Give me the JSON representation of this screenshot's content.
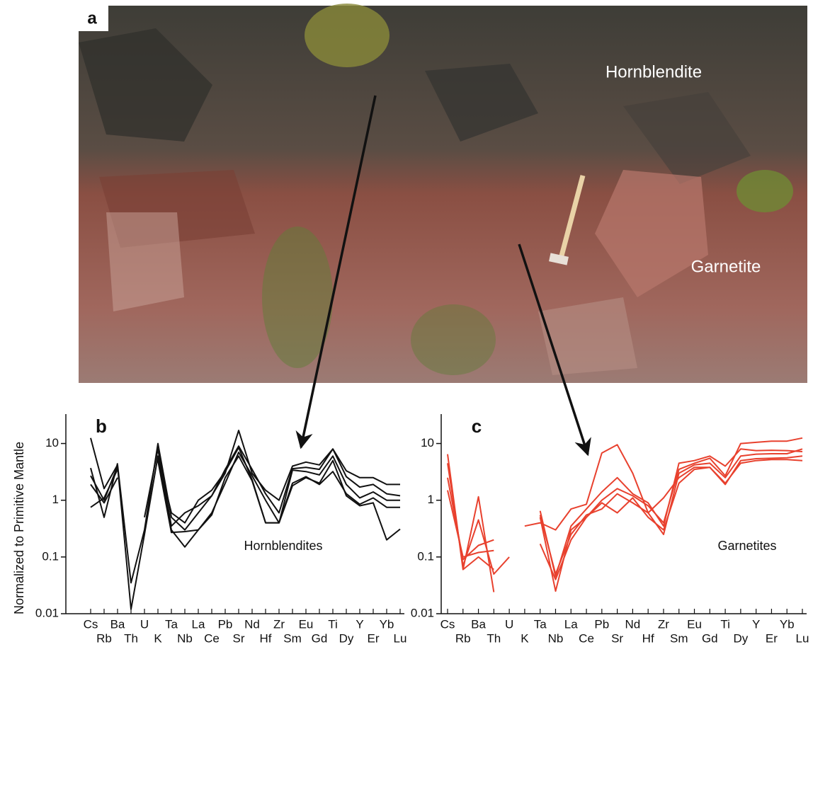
{
  "photo": {
    "panel_label": "a",
    "labels": [
      "Hornblendite",
      "Garnetite"
    ]
  },
  "chart_data": [
    {
      "type": "line",
      "panel_label": "b",
      "title": "Hornblendites",
      "y_label": "Normalized to Primitive Mantle",
      "categories": [
        "Cs",
        "Rb",
        "Ba",
        "Th",
        "U",
        "K",
        "Ta",
        "Nb",
        "La",
        "Ce",
        "Pb",
        "Sr",
        "Nd",
        "Hf",
        "Zr",
        "Sm",
        "Eu",
        "Gd",
        "Ti",
        "Dy",
        "Y",
        "Er",
        "Yb",
        "Lu"
      ],
      "ylim": [
        0.01,
        33
      ],
      "yticks": [
        0.01,
        0.1,
        1,
        10
      ],
      "log_scale": true,
      "series": [
        {
          "color": "#111111",
          "values": [
            12.5,
            1.6,
            4.2,
            0.035,
            0.3,
            10,
            0.5,
            0.3,
            0.6,
            1.2,
            3,
            17,
            3,
            1.5,
            1,
            4,
            4.7,
            4.2,
            8,
            3.3,
            2.5,
            2.5,
            1.9,
            1.9
          ]
        },
        {
          "color": "#111111",
          "values": [
            3.7,
            0.5,
            4.5,
            null,
            0.5,
            8,
            0.35,
            0.6,
            0.8,
            1.2,
            3.5,
            9,
            3.5,
            1.3,
            0.6,
            3.6,
            3.8,
            3.5,
            8,
            2.6,
            1.7,
            1.9,
            1.3,
            1.2
          ]
        },
        {
          "color": "#111111",
          "values": [
            2.7,
            1,
            4,
            0.012,
            0.25,
            6,
            0.3,
            0.15,
            0.3,
            0.6,
            2,
            7,
            2.7,
            1,
            0.4,
            3.4,
            3.2,
            2.8,
            6,
            1.9,
            1.1,
            1.4,
            1,
            1
          ]
        },
        {
          "color": "#111111",
          "values": [
            1.9,
            0.9,
            2.5,
            null,
            null,
            5,
            0.27,
            0.28,
            0.3,
            0.55,
            2.5,
            6,
            2.2,
            0.4,
            0.4,
            2,
            2.6,
            1.9,
            3.2,
            1.3,
            0.85,
            1.1,
            0.75,
            0.75
          ]
        },
        {
          "color": "#111111",
          "values": [
            0.75,
            1.1,
            3.5,
            null,
            null,
            5.5,
            0.6,
            0.4,
            1,
            1.5,
            3.2,
            8.5,
            2.3,
            0.4,
            0.4,
            1.8,
            2.5,
            2,
            5,
            1.2,
            0.8,
            0.9,
            0.2,
            0.31
          ]
        }
      ]
    },
    {
      "type": "line",
      "panel_label": "c",
      "title": "Garnetites",
      "categories": [
        "Cs",
        "Rb",
        "Ba",
        "Th",
        "U",
        "K",
        "Ta",
        "Nb",
        "La",
        "Ce",
        "Pb",
        "Sr",
        "Nd",
        "Hf",
        "Zr",
        "Sm",
        "Eu",
        "Gd",
        "Ti",
        "Dy",
        "Y",
        "Er",
        "Yb",
        "Lu"
      ],
      "ylim": [
        0.01,
        33
      ],
      "yticks": [
        0.01,
        0.1,
        1,
        10
      ],
      "log_scale": true,
      "series": [
        {
          "color": "#e8412e",
          "values": [
            6.5,
            0.06,
            1.15,
            0.024,
            null,
            null,
            0.5,
            0.025,
            0.3,
            0.5,
            1,
            1.6,
            1.2,
            0.8,
            0.4,
            3.5,
            4.5,
            5.5,
            2.7,
            10,
            10.5,
            11,
            11,
            12.5
          ]
        },
        {
          "color": "#e8412e",
          "values": [
            4.5,
            0.07,
            0.45,
            0.05,
            0.1,
            null,
            0.55,
            0.05,
            0.25,
            0.55,
            0.7,
            1.3,
            0.9,
            0.6,
            0.25,
            3,
            4.2,
            4.5,
            2.5,
            6,
            6.5,
            6.6,
            6.6,
            8
          ]
        },
        {
          "color": "#e8412e",
          "values": [
            2.5,
            0.09,
            0.16,
            0.2,
            null,
            null,
            0.65,
            0.045,
            0.35,
            0.7,
            1.4,
            2.5,
            1.3,
            0.9,
            0.35,
            4.5,
            5,
            6,
            4,
            8,
            7.5,
            7.6,
            7.5,
            7.2
          ]
        },
        {
          "color": "#e8412e",
          "values": [
            1.5,
            0.1,
            0.12,
            0.13,
            null,
            0.35,
            0.4,
            0.3,
            0.7,
            0.85,
            6.8,
            9.5,
            3,
            0.6,
            1.1,
            2.5,
            3.8,
            3.8,
            1.9,
            5,
            5.4,
            5.5,
            5.6,
            6
          ]
        },
        {
          "color": "#e8412e",
          "values": [
            null,
            0.06,
            0.1,
            0.06,
            null,
            null,
            0.17,
            0.04,
            0.2,
            0.5,
            0.9,
            0.6,
            1.1,
            0.5,
            0.3,
            2,
            3.5,
            3.8,
            2,
            4.5,
            5,
            5.2,
            5.2,
            5
          ]
        }
      ]
    }
  ]
}
